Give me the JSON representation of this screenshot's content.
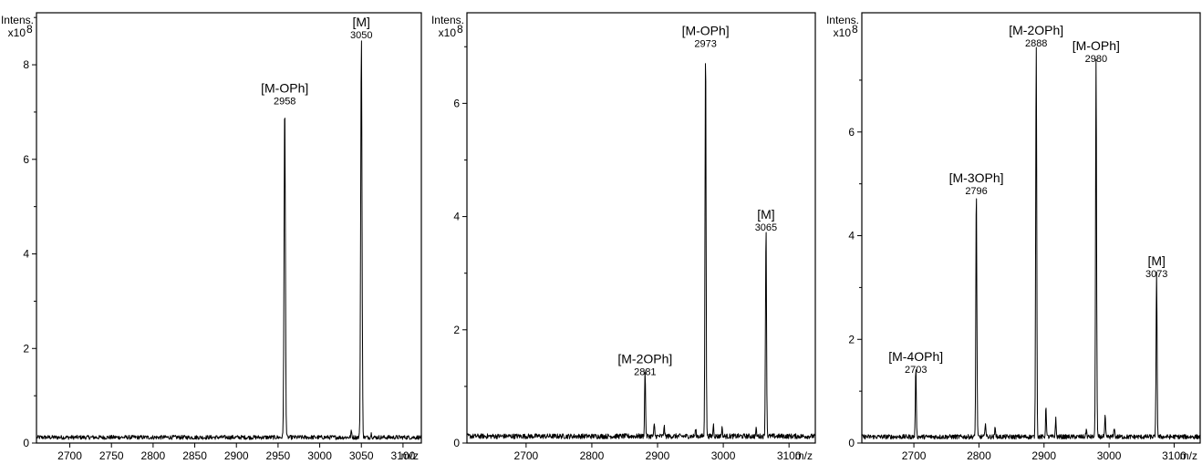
{
  "chart_data": [
    {
      "type": "line",
      "ylabel": "Intens.",
      "y_scale_label": "x10",
      "y_scale_exponent": "8",
      "xlabel": "m/z",
      "xlim": [
        2660,
        3122
      ],
      "ylim": [
        0,
        9.1
      ],
      "xticks": [
        2700,
        2750,
        2800,
        2850,
        2900,
        2950,
        3000,
        3050,
        3100
      ],
      "yticks": [
        0,
        2,
        4,
        6,
        8
      ],
      "baseline": 0.12,
      "peaks": [
        {
          "x": 2958,
          "y": 7.1,
          "width": 2.6
        },
        {
          "x": 3050,
          "y": 8.5,
          "width": 2.6
        },
        {
          "x": 3038,
          "y": 0.12,
          "width": 2.0
        },
        {
          "x": 3062,
          "y": 0.08,
          "width": 2.0
        }
      ],
      "annotations": [
        {
          "name": "[M-OPh]",
          "mz": "2958",
          "x": 2958,
          "y": 7.1
        },
        {
          "name": "[M]",
          "mz": "3050",
          "x": 3050,
          "y": 8.5
        }
      ]
    },
    {
      "type": "line",
      "ylabel": "Intens.",
      "y_scale_label": "x10",
      "y_scale_exponent": "8",
      "xlabel": "m/z",
      "xlim": [
        2610,
        3140
      ],
      "ylim": [
        0,
        7.6
      ],
      "xticks": [
        2700,
        2800,
        2900,
        3000,
        3100
      ],
      "yticks": [
        0,
        2,
        4,
        6
      ],
      "baseline": 0.12,
      "peaks": [
        {
          "x": 2881,
          "y": 1.15,
          "width": 2.4
        },
        {
          "x": 2895,
          "y": 0.2,
          "width": 2.2
        },
        {
          "x": 2910,
          "y": 0.18,
          "width": 2.2
        },
        {
          "x": 2958,
          "y": 0.12,
          "width": 2.2
        },
        {
          "x": 2973,
          "y": 6.95,
          "width": 2.6
        },
        {
          "x": 2985,
          "y": 0.2,
          "width": 2.2
        },
        {
          "x": 2998,
          "y": 0.15,
          "width": 2.2
        },
        {
          "x": 3050,
          "y": 0.12,
          "width": 2.2
        },
        {
          "x": 3065,
          "y": 3.7,
          "width": 2.6
        }
      ],
      "annotations": [
        {
          "name": "[M-2OPh]",
          "mz": "2881",
          "x": 2881,
          "y": 1.15
        },
        {
          "name": "[M-OPh]",
          "mz": "2973",
          "x": 2973,
          "y": 6.95
        },
        {
          "name": "[M]",
          "mz": "3065",
          "x": 3065,
          "y": 3.7
        }
      ]
    },
    {
      "type": "line",
      "ylabel": "Intens.",
      "y_scale_label": "x10",
      "y_scale_exponent": "8",
      "xlabel": "m/z",
      "xlim": [
        2620,
        3140
      ],
      "ylim": [
        0,
        8.3
      ],
      "xticks": [
        2700,
        2800,
        2900,
        3000,
        3100
      ],
      "yticks": [
        0,
        2,
        4,
        6
      ],
      "baseline": 0.12,
      "peaks": [
        {
          "x": 2703,
          "y": 1.3,
          "width": 2.4
        },
        {
          "x": 2796,
          "y": 4.75,
          "width": 2.6
        },
        {
          "x": 2810,
          "y": 0.3,
          "width": 2.2
        },
        {
          "x": 2825,
          "y": 0.2,
          "width": 2.2
        },
        {
          "x": 2888,
          "y": 7.6,
          "width": 2.6
        },
        {
          "x": 2903,
          "y": 0.6,
          "width": 2.2
        },
        {
          "x": 2918,
          "y": 0.35,
          "width": 2.2
        },
        {
          "x": 2965,
          "y": 0.15,
          "width": 2.2
        },
        {
          "x": 2980,
          "y": 7.3,
          "width": 2.6
        },
        {
          "x": 2994,
          "y": 0.4,
          "width": 2.2
        },
        {
          "x": 3008,
          "y": 0.2,
          "width": 2.2
        },
        {
          "x": 3073,
          "y": 3.15,
          "width": 2.6
        }
      ],
      "annotations": [
        {
          "name": "[M-4OPh]",
          "mz": "2703",
          "x": 2703,
          "y": 1.3
        },
        {
          "name": "[M-3OPh]",
          "mz": "2796",
          "x": 2796,
          "y": 4.75
        },
        {
          "name": "[M-2OPh]",
          "mz": "2888",
          "x": 2888,
          "y": 7.6
        },
        {
          "name": "[M-OPh]",
          "mz": "2980",
          "x": 2980,
          "y": 7.3
        },
        {
          "name": "[M]",
          "mz": "3073",
          "x": 3073,
          "y": 3.15
        }
      ]
    }
  ]
}
